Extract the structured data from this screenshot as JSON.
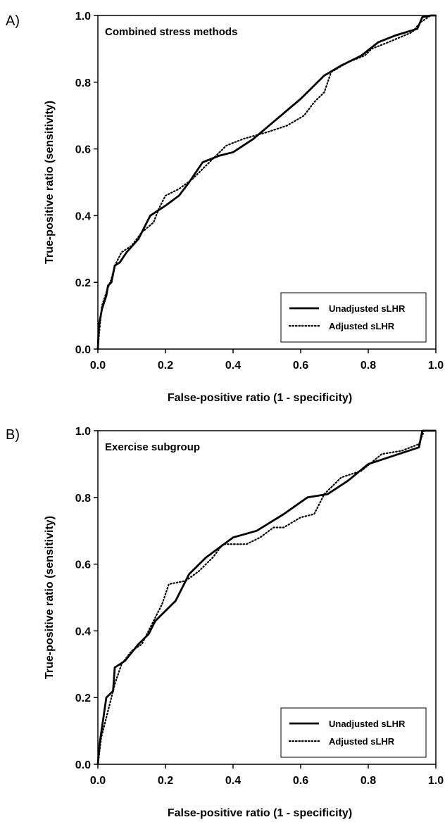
{
  "chart_data": [
    {
      "type": "line",
      "panel_label": "A)",
      "title": "Combined stress methods",
      "xlabel": "False-positive ratio (1 - specificity)",
      "ylabel": "True-positive ratio (sensitivity)",
      "xlim": [
        0,
        1
      ],
      "ylim": [
        0,
        1
      ],
      "xticks": [
        "0.0",
        "0.2",
        "0.4",
        "0.6",
        "0.8",
        "1.0"
      ],
      "yticks": [
        "0.0",
        "0.2",
        "0.4",
        "0.6",
        "0.8",
        "1.0"
      ],
      "grid": false,
      "legend": {
        "position": "bottom-right"
      },
      "series": [
        {
          "name": "Unadjusted sLHR",
          "style": "solid",
          "points": [
            [
              0,
              0
            ],
            [
              0.003,
              0.07
            ],
            [
              0.012,
              0.12
            ],
            [
              0.025,
              0.16
            ],
            [
              0.03,
              0.19
            ],
            [
              0.04,
              0.2
            ],
            [
              0.05,
              0.25
            ],
            [
              0.065,
              0.26
            ],
            [
              0.085,
              0.29
            ],
            [
              0.12,
              0.33
            ],
            [
              0.155,
              0.4
            ],
            [
              0.2,
              0.43
            ],
            [
              0.24,
              0.46
            ],
            [
              0.27,
              0.5
            ],
            [
              0.31,
              0.56
            ],
            [
              0.36,
              0.58
            ],
            [
              0.4,
              0.59
            ],
            [
              0.46,
              0.63
            ],
            [
              0.53,
              0.69
            ],
            [
              0.6,
              0.75
            ],
            [
              0.67,
              0.82
            ],
            [
              0.72,
              0.85
            ],
            [
              0.78,
              0.88
            ],
            [
              0.83,
              0.92
            ],
            [
              0.88,
              0.94
            ],
            [
              0.945,
              0.96
            ],
            [
              0.96,
              0.995
            ],
            [
              0.985,
              1
            ],
            [
              1,
              1
            ]
          ]
        },
        {
          "name": "Adjusted sLHR",
          "style": "dotted",
          "points": [
            [
              0,
              0
            ],
            [
              0.005,
              0.06
            ],
            [
              0.012,
              0.13
            ],
            [
              0.025,
              0.17
            ],
            [
              0.04,
              0.21
            ],
            [
              0.05,
              0.25
            ],
            [
              0.07,
              0.29
            ],
            [
              0.1,
              0.31
            ],
            [
              0.13,
              0.35
            ],
            [
              0.165,
              0.38
            ],
            [
              0.18,
              0.42
            ],
            [
              0.2,
              0.46
            ],
            [
              0.24,
              0.48
            ],
            [
              0.28,
              0.51
            ],
            [
              0.32,
              0.55
            ],
            [
              0.35,
              0.58
            ],
            [
              0.38,
              0.61
            ],
            [
              0.43,
              0.63
            ],
            [
              0.5,
              0.65
            ],
            [
              0.56,
              0.67
            ],
            [
              0.61,
              0.7
            ],
            [
              0.64,
              0.74
            ],
            [
              0.67,
              0.77
            ],
            [
              0.69,
              0.83
            ],
            [
              0.74,
              0.86
            ],
            [
              0.79,
              0.88
            ],
            [
              0.81,
              0.9
            ],
            [
              0.86,
              0.92
            ],
            [
              0.93,
              0.95
            ],
            [
              0.955,
              0.98
            ],
            [
              0.985,
              1
            ],
            [
              1,
              1
            ]
          ]
        }
      ]
    },
    {
      "type": "line",
      "panel_label": "B)",
      "title": "Exercise subgroup",
      "xlabel": "False-positive ratio (1 - specificity)",
      "ylabel": "True-positive ratio (sensitivity)",
      "xlim": [
        0,
        1
      ],
      "ylim": [
        0,
        1
      ],
      "xticks": [
        "0.0",
        "0.2",
        "0.4",
        "0.6",
        "0.8",
        "1.0"
      ],
      "yticks": [
        "0.0",
        "0.2",
        "0.4",
        "0.6",
        "0.8",
        "1.0"
      ],
      "grid": false,
      "legend": {
        "position": "bottom-right"
      },
      "series": [
        {
          "name": "Unadjusted sLHR",
          "style": "solid",
          "points": [
            [
              0,
              0
            ],
            [
              0.005,
              0.06
            ],
            [
              0.015,
              0.13
            ],
            [
              0.025,
              0.2
            ],
            [
              0.035,
              0.21
            ],
            [
              0.045,
              0.22
            ],
            [
              0.05,
              0.29
            ],
            [
              0.08,
              0.31
            ],
            [
              0.12,
              0.36
            ],
            [
              0.15,
              0.39
            ],
            [
              0.17,
              0.43
            ],
            [
              0.21,
              0.47
            ],
            [
              0.23,
              0.49
            ],
            [
              0.25,
              0.53
            ],
            [
              0.27,
              0.57
            ],
            [
              0.32,
              0.62
            ],
            [
              0.36,
              0.65
            ],
            [
              0.4,
              0.68
            ],
            [
              0.47,
              0.7
            ],
            [
              0.55,
              0.75
            ],
            [
              0.62,
              0.8
            ],
            [
              0.68,
              0.81
            ],
            [
              0.74,
              0.85
            ],
            [
              0.8,
              0.9
            ],
            [
              0.86,
              0.92
            ],
            [
              0.92,
              0.94
            ],
            [
              0.95,
              0.95
            ],
            [
              0.96,
              1
            ],
            [
              1,
              1
            ]
          ]
        },
        {
          "name": "Adjusted sLHR",
          "style": "dotted",
          "points": [
            [
              0,
              0
            ],
            [
              0.01,
              0.08
            ],
            [
              0.02,
              0.12
            ],
            [
              0.035,
              0.18
            ],
            [
              0.05,
              0.24
            ],
            [
              0.07,
              0.3
            ],
            [
              0.1,
              0.34
            ],
            [
              0.13,
              0.36
            ],
            [
              0.16,
              0.42
            ],
            [
              0.19,
              0.48
            ],
            [
              0.21,
              0.54
            ],
            [
              0.26,
              0.55
            ],
            [
              0.3,
              0.58
            ],
            [
              0.34,
              0.62
            ],
            [
              0.37,
              0.66
            ],
            [
              0.44,
              0.66
            ],
            [
              0.48,
              0.68
            ],
            [
              0.52,
              0.71
            ],
            [
              0.55,
              0.71
            ],
            [
              0.6,
              0.74
            ],
            [
              0.64,
              0.75
            ],
            [
              0.67,
              0.81
            ],
            [
              0.72,
              0.86
            ],
            [
              0.78,
              0.88
            ],
            [
              0.84,
              0.93
            ],
            [
              0.9,
              0.94
            ],
            [
              0.95,
              0.96
            ],
            [
              0.965,
              1
            ],
            [
              1,
              1
            ]
          ]
        }
      ]
    }
  ]
}
